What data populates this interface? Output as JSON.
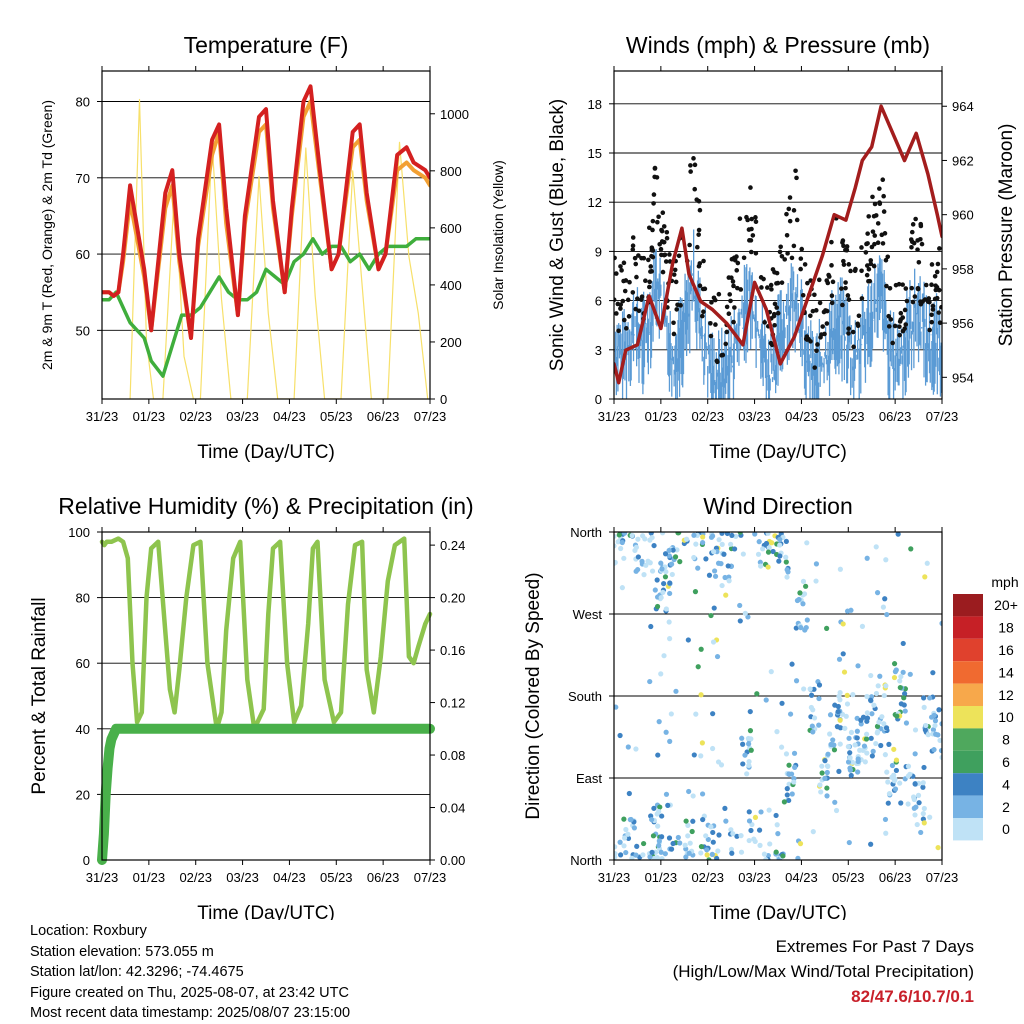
{
  "chart_data": [
    {
      "type": "line",
      "title": "Temperature (F)",
      "xlabel": "Time (Day/UTC)",
      "ylabel": "2m & 9m T (Red, Orange) & 2m Td (Green)",
      "y2label": "Solar Insolation (Yellow)",
      "x_ticks": [
        "31/23",
        "01/23",
        "02/23",
        "03/23",
        "04/23",
        "05/23",
        "06/23",
        "07/23"
      ],
      "xlim": [
        0,
        7
      ],
      "ylim": [
        41,
        84
      ],
      "y_ticks": [
        50,
        60,
        70,
        80
      ],
      "y2lim": [
        0,
        1150
      ],
      "y2_ticks": [
        0,
        200,
        400,
        600,
        800,
        1000
      ],
      "grid": "horizontal",
      "series": [
        {
          "color": "#d42020",
          "x": [
            0,
            0.15,
            0.25,
            0.35,
            0.45,
            0.6,
            0.9,
            1.05,
            1.35,
            1.5,
            1.65,
            1.9,
            2.05,
            2.35,
            2.5,
            2.65,
            2.9,
            3.05,
            3.35,
            3.5,
            3.65,
            3.9,
            4.05,
            4.3,
            4.45,
            4.65,
            4.9,
            5.05,
            5.35,
            5.5,
            5.65,
            5.9,
            6.05,
            6.3,
            6.5,
            6.65,
            6.9,
            7.0
          ],
          "values": [
            55,
            55,
            54.5,
            55,
            60,
            69,
            58,
            50,
            68,
            71,
            60,
            49,
            62,
            75,
            77,
            66,
            52,
            65,
            78,
            79,
            67,
            55,
            66,
            80,
            82,
            71,
            58,
            60,
            76,
            77,
            68,
            58,
            60,
            73,
            74,
            72,
            71,
            70
          ]
        },
        {
          "color": "#f2a033",
          "x": [
            0,
            0.15,
            0.25,
            0.35,
            0.45,
            0.6,
            0.9,
            1.05,
            1.35,
            1.5,
            1.65,
            1.9,
            2.05,
            2.35,
            2.5,
            2.65,
            2.9,
            3.05,
            3.35,
            3.5,
            3.65,
            3.9,
            4.05,
            4.3,
            4.45,
            4.65,
            4.9,
            5.05,
            5.35,
            5.5,
            5.65,
            5.9,
            6.05,
            6.3,
            6.5,
            6.65,
            6.9,
            7.0
          ],
          "values": [
            55,
            55,
            54.5,
            55,
            59,
            67,
            57,
            50,
            66,
            69,
            59,
            49,
            61,
            73,
            76,
            64,
            52,
            64,
            76,
            77,
            66,
            55,
            65,
            78,
            80,
            70,
            58,
            60,
            74,
            75,
            67,
            58,
            60,
            71,
            72,
            71,
            70,
            69
          ]
        },
        {
          "color": "#3fae3c",
          "x": [
            0,
            0.15,
            0.3,
            0.45,
            0.6,
            0.9,
            1.05,
            1.3,
            1.5,
            1.7,
            1.9,
            2.1,
            2.3,
            2.5,
            2.7,
            2.9,
            3.1,
            3.3,
            3.5,
            3.7,
            3.9,
            4.1,
            4.3,
            4.5,
            4.7,
            4.9,
            5.1,
            5.3,
            5.5,
            5.7,
            5.9,
            6.1,
            6.3,
            6.5,
            6.7,
            6.9,
            7.0
          ],
          "values": [
            54,
            54,
            55,
            53,
            51,
            49,
            46,
            44,
            48,
            52,
            52,
            53,
            55,
            57,
            55,
            54,
            54,
            55,
            58,
            57,
            56,
            59,
            60,
            62,
            60,
            61,
            61,
            59,
            60,
            58,
            60,
            61,
            61,
            61,
            62,
            62,
            62
          ]
        },
        {
          "color": "#f7e06a",
          "x": [
            0.6,
            0.8,
            0.95,
            1.1,
            1.3,
            1.55,
            1.75,
            1.95,
            2.1,
            2.35,
            2.55,
            2.75,
            2.95,
            3.1,
            3.35,
            3.55,
            3.75,
            3.95,
            4.1,
            4.35,
            4.55,
            4.75,
            4.95,
            5.1,
            5.35,
            5.55,
            5.75,
            5.95,
            6.1,
            6.35,
            6.55,
            6.75,
            6.95
          ],
          "values": [
            0,
            1050,
            200,
            0,
            0,
            740,
            150,
            0,
            0,
            900,
            350,
            0,
            0,
            0,
            780,
            300,
            0,
            0,
            0,
            880,
            360,
            0,
            0,
            0,
            800,
            400,
            0,
            0,
            0,
            900,
            500,
            300,
            0
          ]
        }
      ]
    },
    {
      "type": "scatter",
      "title": "Winds (mph) & Pressure (mb)",
      "xlabel": "Time (Day/UTC)",
      "ylabel": "Sonic Wind & Gust (Blue, Black)",
      "y2label": "Station Pressure (Maroon)",
      "x_ticks": [
        "31/23",
        "01/23",
        "02/23",
        "03/23",
        "04/23",
        "05/23",
        "06/23",
        "07/23"
      ],
      "xlim": [
        0,
        7
      ],
      "ylim": [
        0,
        20
      ],
      "y_ticks": [
        0,
        3,
        6,
        9,
        12,
        15,
        18
      ],
      "y2lim": [
        953.2,
        965.3
      ],
      "y2_ticks": [
        954,
        956,
        958,
        960,
        962,
        964
      ],
      "grid": "horizontal",
      "series": [
        {
          "color": "#111111",
          "x": [
            0,
            0.2,
            0.4,
            0.6,
            0.8,
            0.9,
            1.1,
            1.3,
            1.5,
            1.7,
            1.9,
            2.1,
            2.3,
            2.5,
            2.7,
            2.9,
            3.1,
            3.3,
            3.5,
            3.7,
            3.9,
            4.1,
            4.3,
            4.5,
            4.7,
            4.9,
            5.1,
            5.3,
            5.5,
            5.7,
            5.9,
            6.1,
            6.3,
            6.5,
            6.7,
            6.9
          ],
          "values": [
            7,
            6,
            8,
            7,
            9,
            13,
            8,
            6,
            9,
            14,
            7,
            5,
            4,
            6,
            9,
            12,
            8,
            5,
            7,
            10,
            12,
            6,
            4,
            6,
            9,
            8,
            5,
            7,
            10,
            12,
            6,
            5,
            8,
            9,
            6,
            7
          ]
        },
        {
          "color": "#5b9bd5",
          "x": [
            0,
            0.2,
            0.4,
            0.6,
            0.8,
            0.9,
            1.1,
            1.3,
            1.5,
            1.7,
            1.9,
            2.1,
            2.3,
            2.5,
            2.7,
            2.9,
            3.1,
            3.3,
            3.5,
            3.7,
            3.9,
            4.1,
            4.3,
            4.5,
            4.7,
            4.9,
            5.1,
            5.3,
            5.5,
            5.7,
            5.9,
            6.1,
            6.3,
            6.5,
            6.7,
            6.9
          ],
          "values": [
            4,
            3,
            5,
            4,
            6,
            8,
            5,
            3,
            5,
            8,
            4,
            2,
            2,
            3,
            5,
            7,
            5,
            2,
            4,
            6,
            7,
            3,
            2,
            3,
            5,
            5,
            3,
            4,
            6,
            7,
            3,
            3,
            5,
            6,
            4,
            4
          ]
        },
        {
          "color": "#a31d1d",
          "x": [
            0,
            0.1,
            0.25,
            0.5,
            0.75,
            1.0,
            1.25,
            1.45,
            1.6,
            1.85,
            2.1,
            2.4,
            2.75,
            3.0,
            3.25,
            3.55,
            3.85,
            4.15,
            4.45,
            4.7,
            4.95,
            5.15,
            5.3,
            5.5,
            5.7,
            5.95,
            6.2,
            6.45,
            6.7,
            6.9,
            7.0
          ],
          "values": [
            954.5,
            953.8,
            955,
            955.2,
            957,
            955.8,
            958.2,
            959.5,
            957.8,
            956.8,
            956.5,
            956,
            955.2,
            957.5,
            956.5,
            954.5,
            955.5,
            957,
            958.5,
            960,
            959.8,
            961,
            962,
            962.5,
            964,
            963,
            962,
            963,
            961.5,
            960,
            959.2
          ]
        }
      ]
    },
    {
      "type": "line",
      "title": "Relative Humidity (%) & Precipitation (in)",
      "xlabel": "Time (Day/UTC)",
      "ylabel": "Percent & Total Rainfall",
      "x_ticks": [
        "31/23",
        "01/23",
        "02/23",
        "03/23",
        "04/23",
        "05/23",
        "06/23",
        "07/23"
      ],
      "xlim": [
        0,
        7
      ],
      "ylim": [
        0,
        100
      ],
      "y_ticks": [
        0,
        20,
        40,
        60,
        80,
        100
      ],
      "y2lim": [
        0,
        0.25
      ],
      "y2_ticks": [
        "0.00",
        "0.04",
        "0.08",
        "0.12",
        "0.16",
        "0.20",
        "0.24"
      ],
      "grid": "horizontal",
      "series": [
        {
          "color": "#8ec44e",
          "x": [
            0,
            0.05,
            0.1,
            0.2,
            0.35,
            0.45,
            0.55,
            0.65,
            0.75,
            0.85,
            0.95,
            1.05,
            1.2,
            1.45,
            1.55,
            1.65,
            1.8,
            1.95,
            2.1,
            2.25,
            2.45,
            2.55,
            2.65,
            2.8,
            2.95,
            3.1,
            3.25,
            3.45,
            3.55,
            3.65,
            3.8,
            3.95,
            4.1,
            4.25,
            4.4,
            4.5,
            4.6,
            4.75,
            4.95,
            5.1,
            5.25,
            5.4,
            5.55,
            5.65,
            5.8,
            5.95,
            6.1,
            6.25,
            6.45,
            6.55,
            6.65,
            6.75,
            6.9,
            7.0
          ],
          "values": [
            97,
            96,
            97,
            97,
            98,
            97,
            92,
            60,
            42,
            45,
            80,
            95,
            97,
            52,
            45,
            58,
            80,
            96,
            97,
            60,
            40,
            45,
            70,
            92,
            97,
            55,
            40,
            46,
            75,
            95,
            97,
            60,
            42,
            47,
            72,
            95,
            97,
            55,
            42,
            45,
            78,
            96,
            97,
            58,
            45,
            62,
            85,
            96,
            98,
            62,
            60,
            65,
            72,
            75
          ]
        },
        {
          "color": "#49b04a",
          "x": [
            0,
            0.04,
            0.08,
            0.12,
            0.16,
            0.2,
            0.3,
            0.4,
            0.6,
            1,
            2,
            3,
            4,
            5,
            6,
            7
          ],
          "values": [
            0,
            0.02,
            0.05,
            0.07,
            0.085,
            0.092,
            0.1,
            0.1,
            0.1,
            0.1,
            0.1,
            0.1,
            0.1,
            0.1,
            0.1,
            0.1
          ]
        }
      ]
    },
    {
      "type": "scatter",
      "title": "Wind Direction",
      "xlabel": "Time (Day/UTC)",
      "ylabel": "Direction (Colored By Speed)",
      "x_ticks": [
        "31/23",
        "01/23",
        "02/23",
        "03/23",
        "04/23",
        "05/23",
        "06/23",
        "07/23"
      ],
      "y_ticks": [
        "North",
        "East",
        "South",
        "West",
        "North"
      ],
      "xlim": [
        0,
        7
      ],
      "ylim": [
        0,
        360
      ],
      "grid": "horizontal",
      "legend": {
        "title": "mph",
        "placement": "right",
        "labels": [
          "20+",
          "18",
          "16",
          "14",
          "12",
          "10",
          "8",
          "6",
          "4",
          "2",
          "0"
        ],
        "colors": [
          "#9b1c1f",
          "#c62026",
          "#e0412d",
          "#f06a30",
          "#f7a84b",
          "#ede35a",
          "#4fa85d",
          "#3fa05e",
          "#3d82c3",
          "#77b3e4",
          "#bfe2f6"
        ]
      },
      "series": [
        {
          "name": "",
          "color": "#3d82c3",
          "x": [
            0.1,
            0.3,
            0.5,
            0.7,
            0.9,
            1.0,
            1.1,
            1.3,
            1.6,
            1.8,
            2.0,
            2.2,
            2.4,
            2.6,
            2.8,
            3.0,
            3.2,
            3.4,
            3.6,
            3.8,
            4.0,
            4.3,
            4.5,
            4.7,
            4.9,
            5.1,
            5.3,
            5.5,
            5.7,
            5.9,
            6.1,
            6.3,
            6.5,
            6.7,
            6.9
          ],
          "values": [
            350,
            20,
            345,
            340,
            30,
            300,
            320,
            355,
            15,
            350,
            25,
            340,
            330,
            10,
            120,
            40,
            350,
            5,
            340,
            90,
            280,
            170,
            100,
            140,
            160,
            120,
            130,
            150,
            170,
            100,
            180,
            90,
            60,
            150,
            140
          ]
        }
      ]
    }
  ],
  "info": {
    "location": "Location: Roxbury",
    "elevation": "Station elevation: 573.055 m",
    "latlon": "Station lat/lon: 42.3296; -74.4675",
    "created": "Figure created on Thu, 2025-08-07, at 23:42 UTC",
    "recent": "Most recent data timestamp: 2025/08/07 23:15:00"
  },
  "extremes": {
    "title": "Extremes For Past 7 Days",
    "subtitle": "(High/Low/Max Wind/Total Precipitation)",
    "values": "82/47.6/10.7/0.1"
  }
}
